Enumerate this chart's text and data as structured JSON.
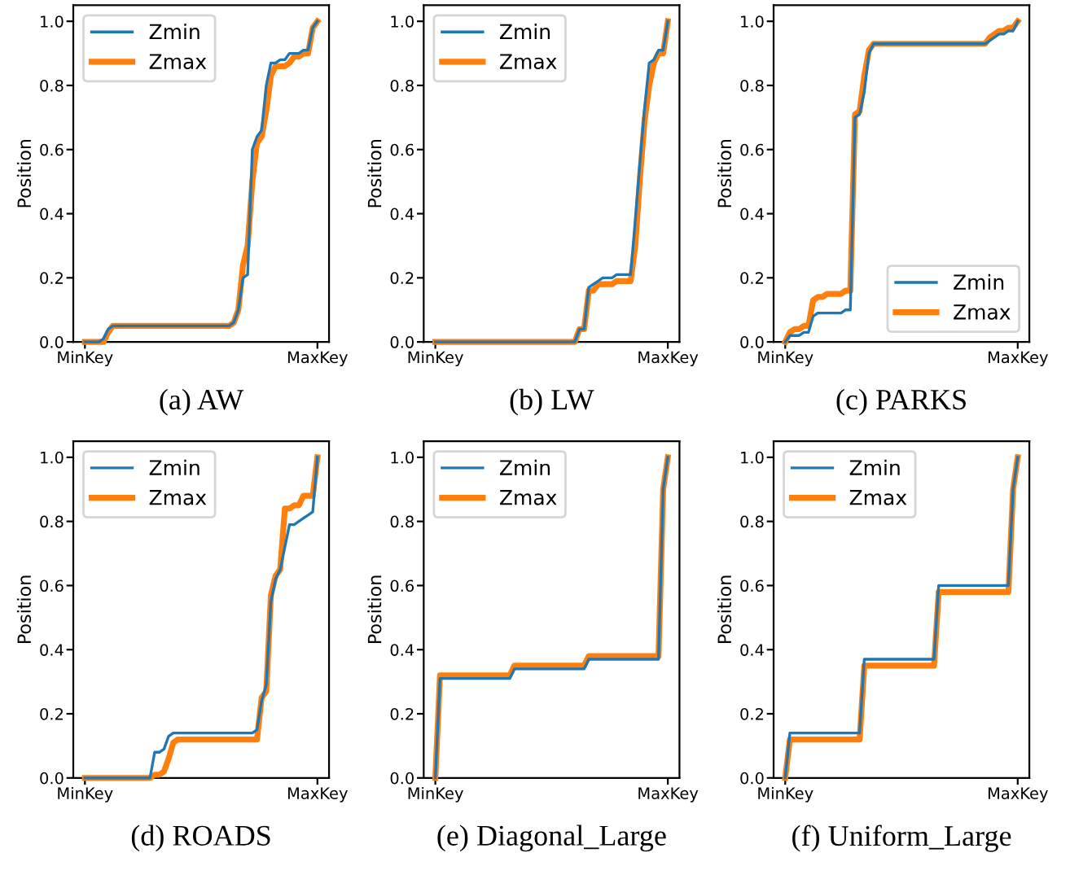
{
  "chart_data": [
    {
      "type": "line",
      "xlabel": "(a) AW",
      "ylabel": "Position",
      "categories": [
        "MinKey",
        null,
        null,
        null,
        null,
        null,
        null,
        null,
        null,
        null,
        null,
        null,
        null,
        null,
        null,
        null,
        null,
        null,
        null,
        null,
        null,
        null,
        null,
        null,
        null,
        null,
        null,
        null,
        null,
        null,
        null,
        null,
        null,
        null,
        null,
        null,
        null,
        null,
        null,
        null,
        null,
        null,
        null,
        null,
        null,
        null,
        null,
        null,
        null,
        null,
        "MaxKey"
      ],
      "ylim": [
        0,
        1.05
      ],
      "yticks": [
        {
          "value": 0,
          "label": "0.0"
        },
        {
          "value": 0.2,
          "label": "0.2"
        },
        {
          "value": 0.4,
          "label": "0.4"
        },
        {
          "value": 0.6,
          "label": "0.6"
        },
        {
          "value": 0.8,
          "label": "0.8"
        },
        {
          "value": 1,
          "label": "1.0"
        }
      ],
      "legend": "top left",
      "grid": false,
      "series": [
        {
          "name": "Zmin",
          "color": "#1f77b4",
          "values": [
            0,
            0,
            0,
            0,
            0.01,
            0.04,
            0.05,
            0.05,
            0.05,
            0.05,
            0.05,
            0.05,
            0.05,
            0.05,
            0.05,
            0.05,
            0.05,
            0.05,
            0.05,
            0.05,
            0.05,
            0.05,
            0.05,
            0.05,
            0.05,
            0.05,
            0.05,
            0.05,
            0.05,
            0.05,
            0.05,
            0.05,
            0.06,
            0.1,
            0.2,
            0.21,
            0.6,
            0.64,
            0.66,
            0.8,
            0.87,
            0.87,
            0.88,
            0.88,
            0.9,
            0.9,
            0.9,
            0.91,
            0.91,
            0.98,
            1.0
          ]
        },
        {
          "name": "Zmax",
          "color": "#ff7f0e",
          "values": [
            0,
            0,
            0,
            0,
            0,
            0.03,
            0.05,
            0.05,
            0.05,
            0.05,
            0.05,
            0.05,
            0.05,
            0.05,
            0.05,
            0.05,
            0.05,
            0.05,
            0.05,
            0.05,
            0.05,
            0.05,
            0.05,
            0.05,
            0.05,
            0.05,
            0.05,
            0.05,
            0.05,
            0.05,
            0.05,
            0.05,
            0.06,
            0.1,
            0.24,
            0.3,
            0.5,
            0.62,
            0.64,
            0.72,
            0.83,
            0.86,
            0.86,
            0.86,
            0.87,
            0.89,
            0.89,
            0.9,
            0.9,
            0.98,
            1.0
          ]
        }
      ]
    },
    {
      "type": "line",
      "xlabel": "(b) LW",
      "ylabel": "Position",
      "categories": [
        "MinKey",
        null,
        null,
        null,
        null,
        null,
        null,
        null,
        null,
        null,
        null,
        null,
        null,
        null,
        null,
        null,
        null,
        null,
        null,
        null,
        null,
        null,
        null,
        null,
        null,
        null,
        null,
        null,
        null,
        null,
        null,
        null,
        null,
        null,
        null,
        null,
        null,
        null,
        null,
        null,
        null,
        null,
        null,
        null,
        null,
        null,
        null,
        null,
        null,
        null,
        "MaxKey"
      ],
      "ylim": [
        0,
        1.05
      ],
      "yticks": [
        {
          "value": 0,
          "label": "0.0"
        },
        {
          "value": 0.2,
          "label": "0.2"
        },
        {
          "value": 0.4,
          "label": "0.4"
        },
        {
          "value": 0.6,
          "label": "0.6"
        },
        {
          "value": 0.8,
          "label": "0.8"
        },
        {
          "value": 1,
          "label": "1.0"
        }
      ],
      "legend": "top left",
      "grid": false,
      "series": [
        {
          "name": "Zmin",
          "color": "#1f77b4",
          "values": [
            0,
            0,
            0,
            0,
            0,
            0,
            0,
            0,
            0,
            0,
            0,
            0,
            0,
            0,
            0,
            0,
            0,
            0,
            0,
            0,
            0,
            0,
            0,
            0,
            0,
            0,
            0,
            0,
            0,
            0,
            0,
            0.04,
            0.04,
            0.17,
            0.18,
            0.19,
            0.2,
            0.2,
            0.2,
            0.21,
            0.21,
            0.21,
            0.21,
            0.38,
            0.56,
            0.73,
            0.87,
            0.88,
            0.91,
            0.91,
            1.0
          ]
        },
        {
          "name": "Zmax",
          "color": "#ff7f0e",
          "values": [
            0,
            0,
            0,
            0,
            0,
            0,
            0,
            0,
            0,
            0,
            0,
            0,
            0,
            0,
            0,
            0,
            0,
            0,
            0,
            0,
            0,
            0,
            0,
            0,
            0,
            0,
            0,
            0,
            0,
            0,
            0,
            0.04,
            0.04,
            0.16,
            0.16,
            0.18,
            0.18,
            0.18,
            0.18,
            0.19,
            0.19,
            0.19,
            0.19,
            0.3,
            0.51,
            0.69,
            0.8,
            0.87,
            0.9,
            0.9,
            1.0
          ]
        }
      ]
    },
    {
      "type": "line",
      "xlabel": "(c) PARKS",
      "ylabel": "Position",
      "categories": [
        "MinKey",
        null,
        null,
        null,
        null,
        null,
        null,
        null,
        null,
        null,
        null,
        null,
        null,
        null,
        null,
        null,
        null,
        null,
        null,
        null,
        null,
        null,
        null,
        null,
        null,
        null,
        null,
        null,
        null,
        null,
        null,
        null,
        null,
        null,
        null,
        null,
        null,
        null,
        null,
        null,
        null,
        null,
        null,
        null,
        null,
        null,
        null,
        null,
        null,
        null,
        "MaxKey"
      ],
      "ylim": [
        0,
        1.05
      ],
      "yticks": [
        {
          "value": 0,
          "label": "0.0"
        },
        {
          "value": 0.2,
          "label": "0.2"
        },
        {
          "value": 0.4,
          "label": "0.4"
        },
        {
          "value": 0.6,
          "label": "0.6"
        },
        {
          "value": 0.8,
          "label": "0.8"
        },
        {
          "value": 1,
          "label": "1.0"
        }
      ],
      "legend": "bottom right",
      "grid": false,
      "series": [
        {
          "name": "Zmin",
          "color": "#1f77b4",
          "values": [
            0,
            0.02,
            0.02,
            0.02,
            0.03,
            0.03,
            0.08,
            0.09,
            0.09,
            0.09,
            0.09,
            0.09,
            0.09,
            0.1,
            0.1,
            0.7,
            0.71,
            0.78,
            0.9,
            0.93,
            0.93,
            0.93,
            0.93,
            0.93,
            0.93,
            0.93,
            0.93,
            0.93,
            0.93,
            0.93,
            0.93,
            0.93,
            0.93,
            0.93,
            0.93,
            0.93,
            0.93,
            0.93,
            0.93,
            0.93,
            0.93,
            0.93,
            0.93,
            0.93,
            0.94,
            0.95,
            0.96,
            0.96,
            0.97,
            0.97,
            1.0
          ]
        },
        {
          "name": "Zmax",
          "color": "#ff7f0e",
          "values": [
            0,
            0.03,
            0.04,
            0.04,
            0.05,
            0.05,
            0.13,
            0.14,
            0.14,
            0.15,
            0.15,
            0.15,
            0.15,
            0.16,
            0.16,
            0.71,
            0.72,
            0.83,
            0.91,
            0.93,
            0.93,
            0.93,
            0.93,
            0.93,
            0.93,
            0.93,
            0.93,
            0.93,
            0.93,
            0.93,
            0.93,
            0.93,
            0.93,
            0.93,
            0.93,
            0.93,
            0.93,
            0.93,
            0.93,
            0.93,
            0.93,
            0.93,
            0.93,
            0.93,
            0.95,
            0.96,
            0.97,
            0.97,
            0.98,
            0.98,
            1.0
          ]
        }
      ]
    },
    {
      "type": "line",
      "xlabel": "(d) ROADS",
      "ylabel": "Position",
      "categories": [
        "MinKey",
        null,
        null,
        null,
        null,
        null,
        null,
        null,
        null,
        null,
        null,
        null,
        null,
        null,
        null,
        null,
        null,
        null,
        null,
        null,
        null,
        null,
        null,
        null,
        null,
        null,
        null,
        null,
        null,
        null,
        null,
        null,
        null,
        null,
        null,
        null,
        null,
        null,
        null,
        null,
        null,
        null,
        null,
        null,
        null,
        null,
        null,
        null,
        null,
        null,
        "MaxKey"
      ],
      "ylim": [
        0,
        1.05
      ],
      "yticks": [
        {
          "value": 0,
          "label": "0.0"
        },
        {
          "value": 0.2,
          "label": "0.2"
        },
        {
          "value": 0.4,
          "label": "0.4"
        },
        {
          "value": 0.6,
          "label": "0.6"
        },
        {
          "value": 0.8,
          "label": "0.8"
        },
        {
          "value": 1,
          "label": "1.0"
        }
      ],
      "legend": "top left",
      "grid": false,
      "series": [
        {
          "name": "Zmin",
          "color": "#1f77b4",
          "values": [
            0,
            0,
            0,
            0,
            0,
            0,
            0,
            0,
            0,
            0,
            0,
            0,
            0,
            0,
            0,
            0.08,
            0.08,
            0.09,
            0.13,
            0.14,
            0.14,
            0.14,
            0.14,
            0.14,
            0.14,
            0.14,
            0.14,
            0.14,
            0.14,
            0.14,
            0.14,
            0.14,
            0.14,
            0.14,
            0.14,
            0.14,
            0.14,
            0.15,
            0.24,
            0.29,
            0.55,
            0.62,
            0.65,
            0.72,
            0.79,
            0.79,
            0.8,
            0.81,
            0.82,
            0.83,
            1.0
          ]
        },
        {
          "name": "Zmax",
          "color": "#ff7f0e",
          "values": [
            0,
            0,
            0,
            0,
            0,
            0,
            0,
            0,
            0,
            0,
            0,
            0,
            0,
            0,
            0,
            0.01,
            0.01,
            0.02,
            0.06,
            0.11,
            0.12,
            0.12,
            0.12,
            0.12,
            0.12,
            0.12,
            0.12,
            0.12,
            0.12,
            0.12,
            0.12,
            0.12,
            0.12,
            0.12,
            0.12,
            0.12,
            0.12,
            0.12,
            0.25,
            0.27,
            0.57,
            0.63,
            0.65,
            0.84,
            0.84,
            0.85,
            0.85,
            0.88,
            0.88,
            0.88,
            1.0
          ]
        }
      ]
    },
    {
      "type": "line",
      "xlabel": "(e) Diagonal_Large",
      "ylabel": "Position",
      "categories": [
        "MinKey",
        null,
        null,
        null,
        null,
        null,
        null,
        null,
        null,
        null,
        null,
        null,
        null,
        null,
        null,
        null,
        null,
        null,
        null,
        null,
        null,
        null,
        null,
        null,
        null,
        null,
        null,
        null,
        null,
        null,
        null,
        null,
        null,
        null,
        null,
        null,
        null,
        null,
        null,
        null,
        null,
        null,
        null,
        null,
        null,
        null,
        null,
        null,
        null,
        null,
        "MaxKey"
      ],
      "ylim": [
        0,
        1.05
      ],
      "yticks": [
        {
          "value": 0,
          "label": "0.0"
        },
        {
          "value": 0.2,
          "label": "0.2"
        },
        {
          "value": 0.4,
          "label": "0.4"
        },
        {
          "value": 0.6,
          "label": "0.6"
        },
        {
          "value": 0.8,
          "label": "0.8"
        },
        {
          "value": 1,
          "label": "1.0"
        }
      ],
      "legend": "top left",
      "grid": false,
      "series": [
        {
          "name": "Zmin",
          "color": "#1f77b4",
          "values": [
            0,
            0.31,
            0.31,
            0.31,
            0.31,
            0.31,
            0.31,
            0.31,
            0.31,
            0.31,
            0.31,
            0.31,
            0.31,
            0.31,
            0.31,
            0.31,
            0.31,
            0.34,
            0.34,
            0.34,
            0.34,
            0.34,
            0.34,
            0.34,
            0.34,
            0.34,
            0.34,
            0.34,
            0.34,
            0.34,
            0.34,
            0.34,
            0.34,
            0.37,
            0.37,
            0.37,
            0.37,
            0.37,
            0.37,
            0.37,
            0.37,
            0.37,
            0.37,
            0.37,
            0.37,
            0.37,
            0.37,
            0.37,
            0.37,
            0.9,
            1.0
          ]
        },
        {
          "name": "Zmax",
          "color": "#ff7f0e",
          "values": [
            0,
            0.32,
            0.32,
            0.32,
            0.32,
            0.32,
            0.32,
            0.32,
            0.32,
            0.32,
            0.32,
            0.32,
            0.32,
            0.32,
            0.32,
            0.32,
            0.32,
            0.35,
            0.35,
            0.35,
            0.35,
            0.35,
            0.35,
            0.35,
            0.35,
            0.35,
            0.35,
            0.35,
            0.35,
            0.35,
            0.35,
            0.35,
            0.35,
            0.38,
            0.38,
            0.38,
            0.38,
            0.38,
            0.38,
            0.38,
            0.38,
            0.38,
            0.38,
            0.38,
            0.38,
            0.38,
            0.38,
            0.38,
            0.38,
            0.9,
            1.0
          ]
        }
      ]
    },
    {
      "type": "line",
      "xlabel": "(f) Uniform_Large",
      "ylabel": "Position",
      "categories": [
        "MinKey",
        null,
        null,
        null,
        null,
        null,
        null,
        null,
        null,
        null,
        null,
        null,
        null,
        null,
        null,
        null,
        null,
        null,
        null,
        null,
        null,
        null,
        null,
        null,
        null,
        null,
        null,
        null,
        null,
        null,
        null,
        null,
        null,
        null,
        null,
        null,
        null,
        null,
        null,
        null,
        null,
        null,
        null,
        null,
        null,
        null,
        null,
        null,
        null,
        null,
        "MaxKey"
      ],
      "ylim": [
        0,
        1.05
      ],
      "yticks": [
        {
          "value": 0,
          "label": "0.0"
        },
        {
          "value": 0.2,
          "label": "0.2"
        },
        {
          "value": 0.4,
          "label": "0.4"
        },
        {
          "value": 0.6,
          "label": "0.6"
        },
        {
          "value": 0.8,
          "label": "0.8"
        },
        {
          "value": 1,
          "label": "1.0"
        }
      ],
      "legend": "top left",
      "grid": false,
      "series": [
        {
          "name": "Zmin",
          "color": "#1f77b4",
          "values": [
            0,
            0.14,
            0.14,
            0.14,
            0.14,
            0.14,
            0.14,
            0.14,
            0.14,
            0.14,
            0.14,
            0.14,
            0.14,
            0.14,
            0.14,
            0.14,
            0.14,
            0.37,
            0.37,
            0.37,
            0.37,
            0.37,
            0.37,
            0.37,
            0.37,
            0.37,
            0.37,
            0.37,
            0.37,
            0.37,
            0.37,
            0.37,
            0.37,
            0.6,
            0.6,
            0.6,
            0.6,
            0.6,
            0.6,
            0.6,
            0.6,
            0.6,
            0.6,
            0.6,
            0.6,
            0.6,
            0.6,
            0.6,
            0.6,
            0.9,
            1.0
          ]
        },
        {
          "name": "Zmax",
          "color": "#ff7f0e",
          "values": [
            0,
            0.12,
            0.12,
            0.12,
            0.12,
            0.12,
            0.12,
            0.12,
            0.12,
            0.12,
            0.12,
            0.12,
            0.12,
            0.12,
            0.12,
            0.12,
            0.12,
            0.35,
            0.35,
            0.35,
            0.35,
            0.35,
            0.35,
            0.35,
            0.35,
            0.35,
            0.35,
            0.35,
            0.35,
            0.35,
            0.35,
            0.35,
            0.35,
            0.58,
            0.58,
            0.58,
            0.58,
            0.58,
            0.58,
            0.58,
            0.58,
            0.58,
            0.58,
            0.58,
            0.58,
            0.58,
            0.58,
            0.58,
            0.58,
            0.9,
            1.0
          ]
        }
      ]
    }
  ]
}
